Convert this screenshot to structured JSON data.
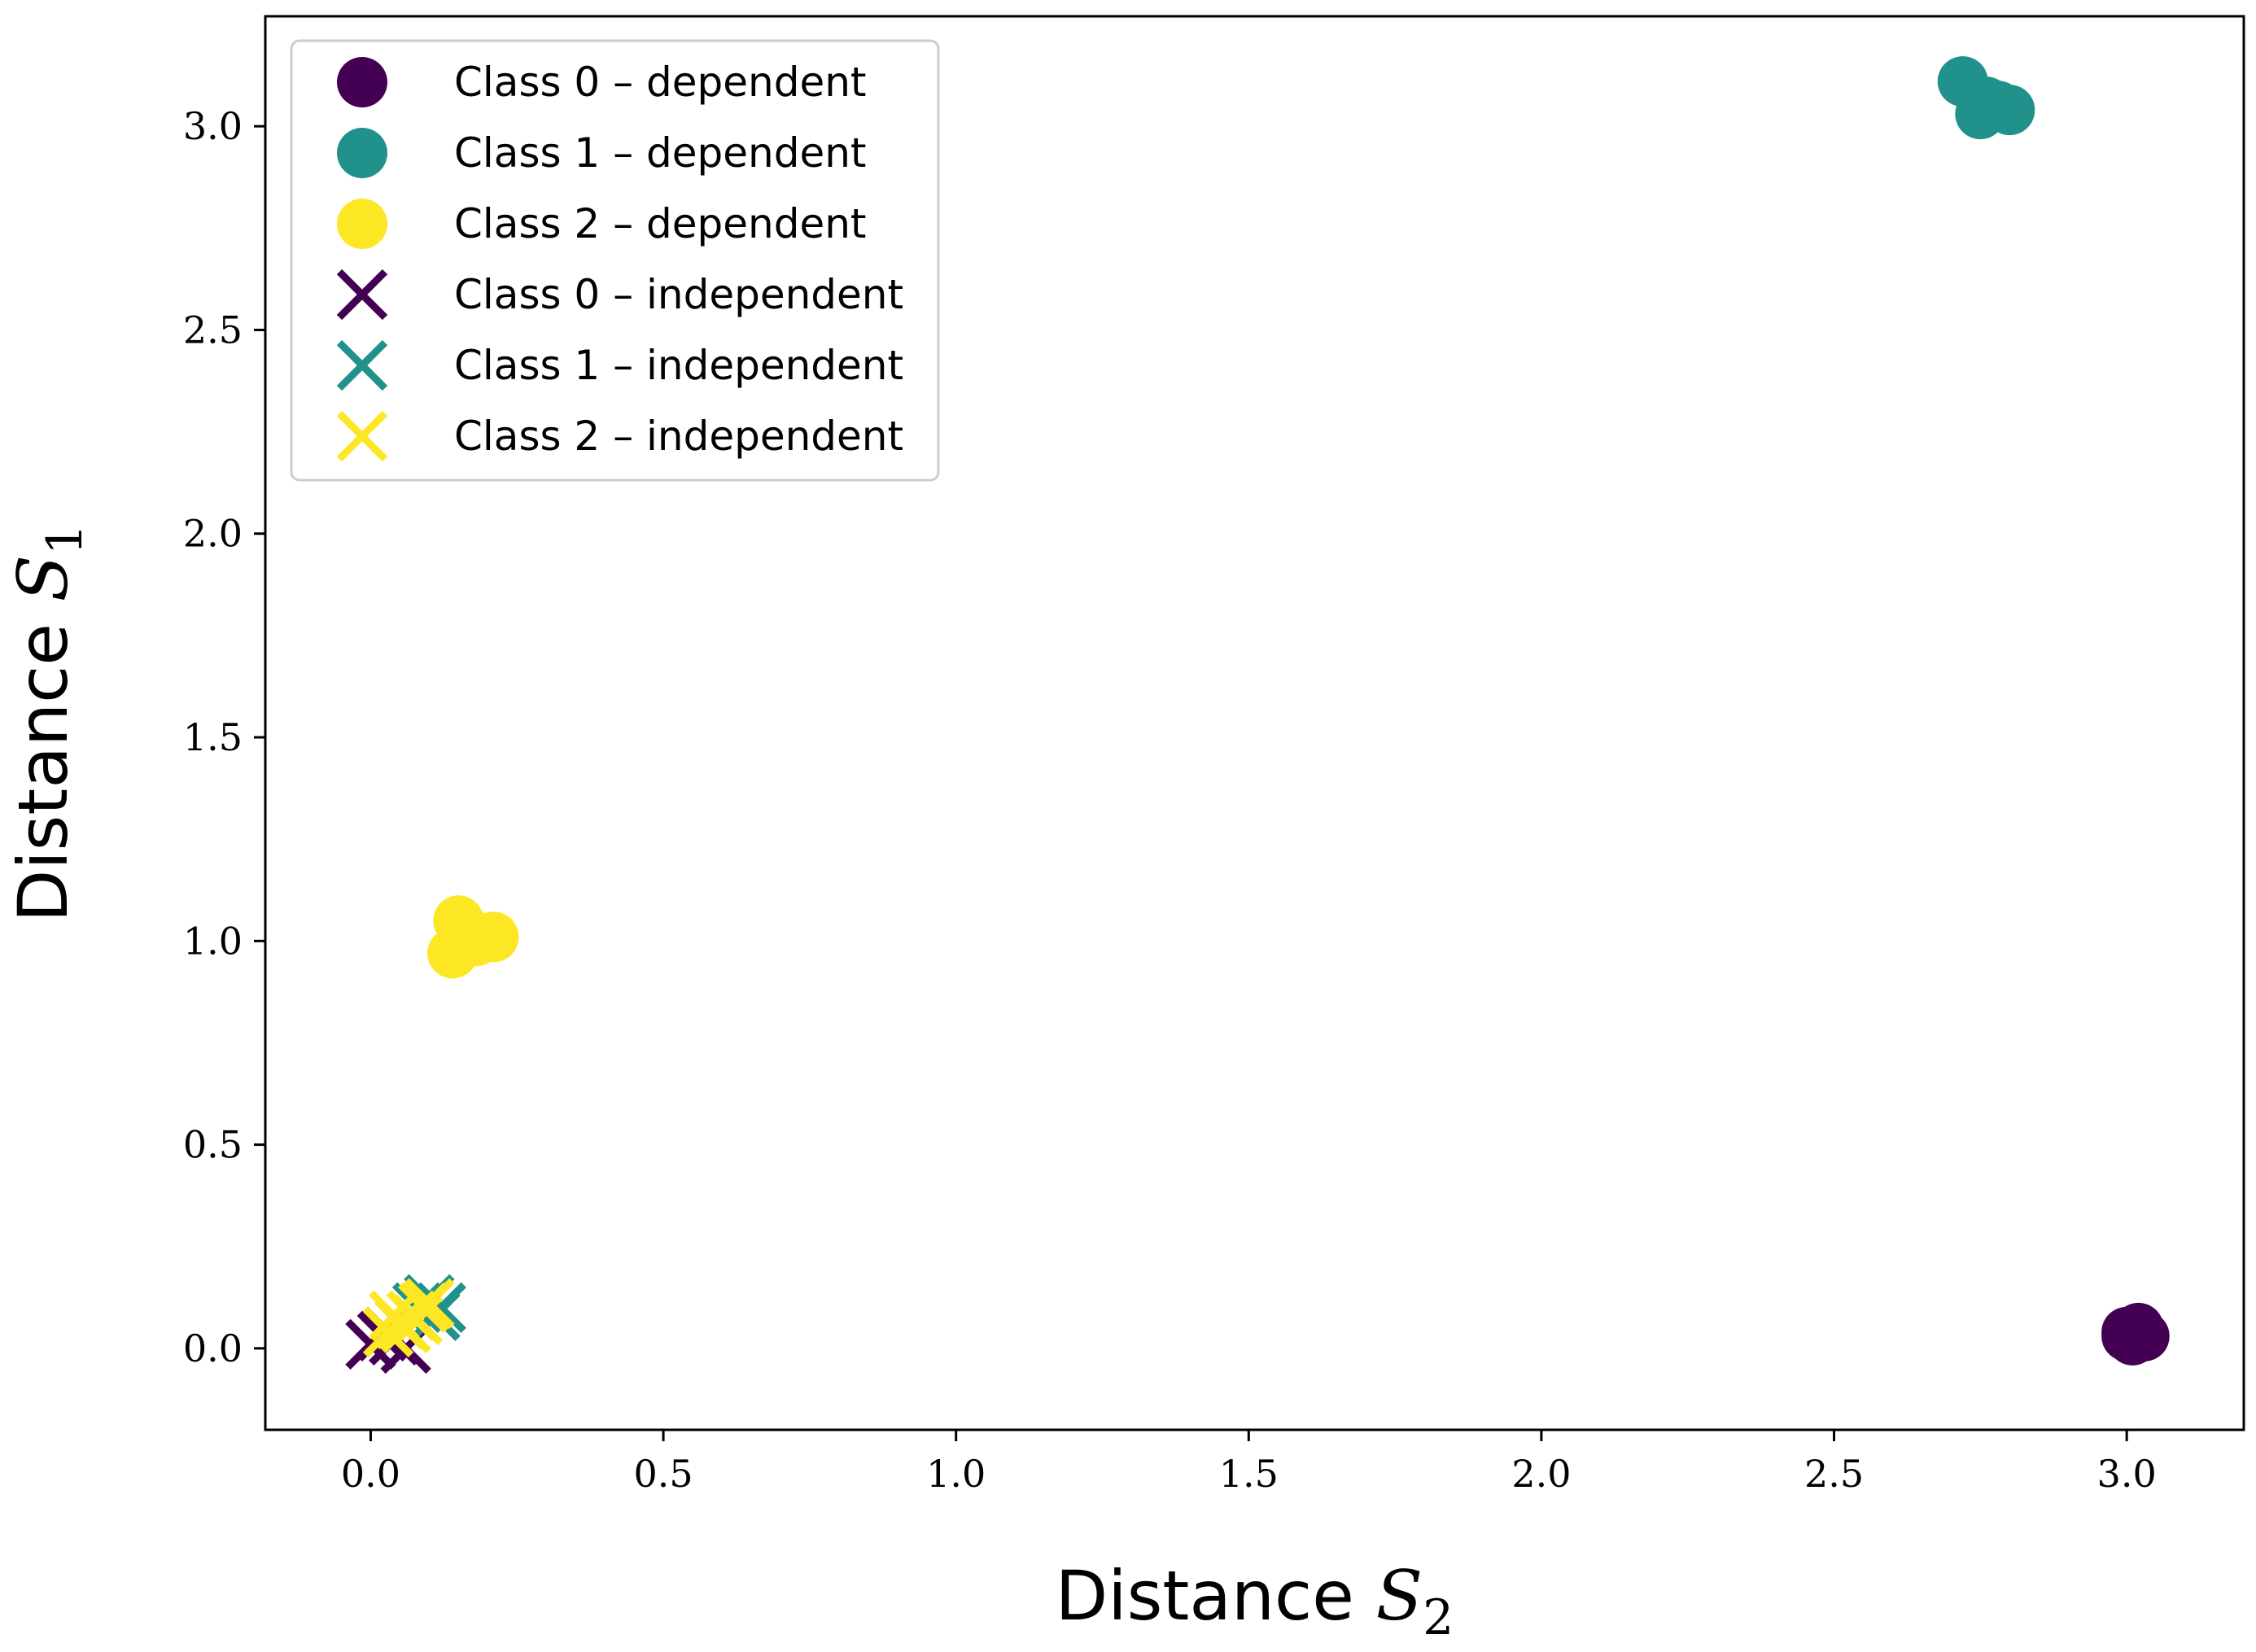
{
  "chart_data": {
    "type": "scatter",
    "title": "",
    "xlabel": {
      "prefix": "Distance ",
      "symbol": "S",
      "subscript": "2"
    },
    "ylabel": {
      "prefix": "Distance ",
      "symbol": "S",
      "subscript": "1"
    },
    "xlim": [
      -0.18,
      3.2
    ],
    "ylim": [
      -0.2,
      3.27
    ],
    "grid": false,
    "legend_location": "top-left",
    "xticks": [
      0.0,
      0.5,
      1.0,
      1.5,
      2.0,
      2.5,
      3.0
    ],
    "yticks": [
      0.0,
      0.5,
      1.0,
      1.5,
      2.0,
      2.5,
      3.0
    ],
    "xtick_labels": [
      "0.0",
      "0.5",
      "1.0",
      "1.5",
      "2.0",
      "2.5",
      "3.0"
    ],
    "ytick_labels": [
      "0.0",
      "0.5",
      "1.0",
      "1.5",
      "2.0",
      "2.5",
      "3.0"
    ],
    "series": [
      {
        "name": "Class 0 – dependent",
        "marker": "circle",
        "color": "#440154",
        "points": [
          [
            3.0,
            0.04
          ],
          [
            3.02,
            0.05
          ],
          [
            3.01,
            0.02
          ],
          [
            3.03,
            0.03
          ],
          [
            3.0,
            0.03
          ]
        ]
      },
      {
        "name": "Class 1 – dependent",
        "marker": "circle",
        "color": "#21918c",
        "points": [
          [
            2.72,
            3.11
          ],
          [
            2.76,
            3.06
          ],
          [
            2.75,
            3.03
          ],
          [
            2.8,
            3.04
          ],
          [
            2.78,
            3.05
          ]
        ]
      },
      {
        "name": "Class 2 – dependent",
        "marker": "circle",
        "color": "#fde725",
        "points": [
          [
            0.15,
            1.05
          ],
          [
            0.21,
            1.01
          ],
          [
            0.14,
            0.97
          ],
          [
            0.18,
            1.0
          ],
          [
            0.16,
            1.03
          ]
        ]
      },
      {
        "name": "Class 0 – independent",
        "marker": "x",
        "color": "#440154",
        "points": [
          [
            0.0,
            0.01
          ],
          [
            0.02,
            0.03
          ],
          [
            0.04,
            0.02
          ],
          [
            0.06,
            0.0
          ],
          [
            0.03,
            0.04
          ]
        ]
      },
      {
        "name": "Class 1 – independent",
        "marker": "x",
        "color": "#21918c",
        "points": [
          [
            0.1,
            0.12
          ],
          [
            0.12,
            0.1
          ],
          [
            0.08,
            0.1
          ],
          [
            0.05,
            0.06
          ],
          [
            0.11,
            0.08
          ]
        ]
      },
      {
        "name": "Class 2 – independent",
        "marker": "x",
        "color": "#fde725",
        "points": [
          [
            0.03,
            0.04
          ],
          [
            0.05,
            0.06
          ],
          [
            0.07,
            0.08
          ],
          [
            0.09,
            0.1
          ],
          [
            0.1,
            0.11
          ],
          [
            0.06,
            0.05
          ],
          [
            0.08,
            0.07
          ],
          [
            0.04,
            0.08
          ]
        ]
      }
    ]
  }
}
